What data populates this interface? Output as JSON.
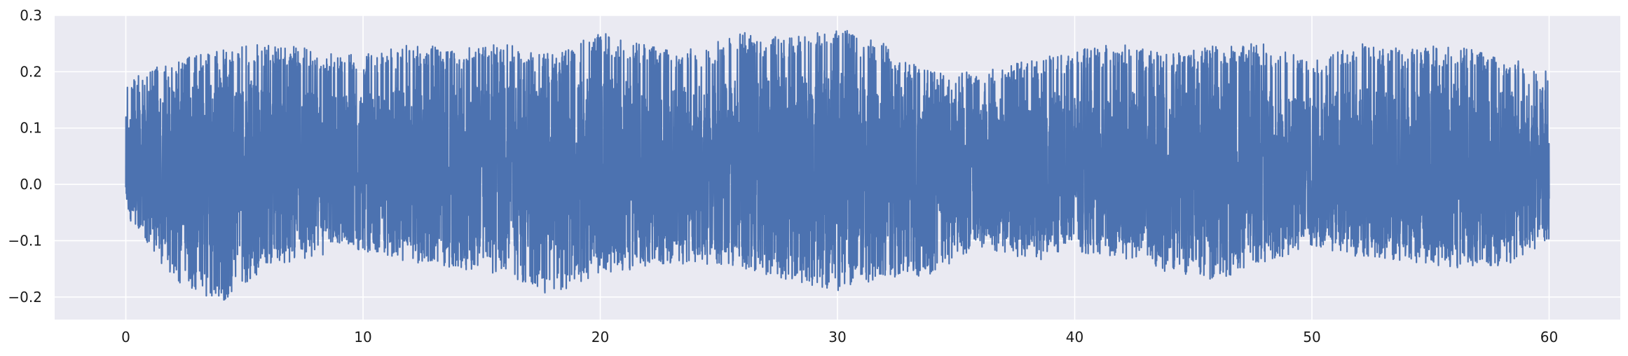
{
  "chart_data": {
    "type": "line",
    "title": "",
    "xlabel": "",
    "ylabel": "",
    "xlim": [
      -3,
      63
    ],
    "ylim": [
      -0.24,
      0.3
    ],
    "grid": true,
    "x_ticks": [
      0,
      10,
      20,
      30,
      40,
      50,
      60
    ],
    "x_tick_labels": [
      "0",
      "10",
      "20",
      "30",
      "40",
      "50",
      "60"
    ],
    "y_ticks": [
      -0.2,
      -0.1,
      0.0,
      0.1,
      0.2,
      0.3
    ],
    "y_tick_labels": [
      "−0.2",
      "−0.1",
      "0.0",
      "0.1",
      "0.2",
      "0.3"
    ],
    "series": [
      {
        "color": "#4c72b0",
        "x_range": [
          0,
          60
        ],
        "description_of_values": "dense oscillating signal centred near 0.03",
        "envelope": {
          "x": [
            0,
            2,
            4,
            6,
            8,
            10,
            12,
            14,
            16,
            18,
            20,
            22,
            24,
            26,
            28,
            30,
            32,
            34,
            36,
            38,
            40,
            42,
            44,
            46,
            48,
            50,
            52,
            54,
            56,
            58,
            60
          ],
          "max": [
            0.19,
            0.22,
            0.24,
            0.25,
            0.24,
            0.23,
            0.25,
            0.24,
            0.25,
            0.23,
            0.27,
            0.25,
            0.24,
            0.27,
            0.26,
            0.28,
            0.25,
            0.2,
            0.2,
            0.22,
            0.24,
            0.25,
            0.23,
            0.25,
            0.25,
            0.22,
            0.25,
            0.24,
            0.25,
            0.23,
            0.2
          ],
          "min": [
            -0.05,
            -0.17,
            -0.21,
            -0.15,
            -0.13,
            -0.12,
            -0.14,
            -0.15,
            -0.16,
            -0.2,
            -0.16,
            -0.15,
            -0.14,
            -0.15,
            -0.17,
            -0.19,
            -0.17,
            -0.16,
            -0.11,
            -0.14,
            -0.12,
            -0.13,
            -0.16,
            -0.17,
            -0.14,
            -0.11,
            -0.13,
            -0.14,
            -0.15,
            -0.15,
            -0.1
          ]
        }
      }
    ]
  }
}
